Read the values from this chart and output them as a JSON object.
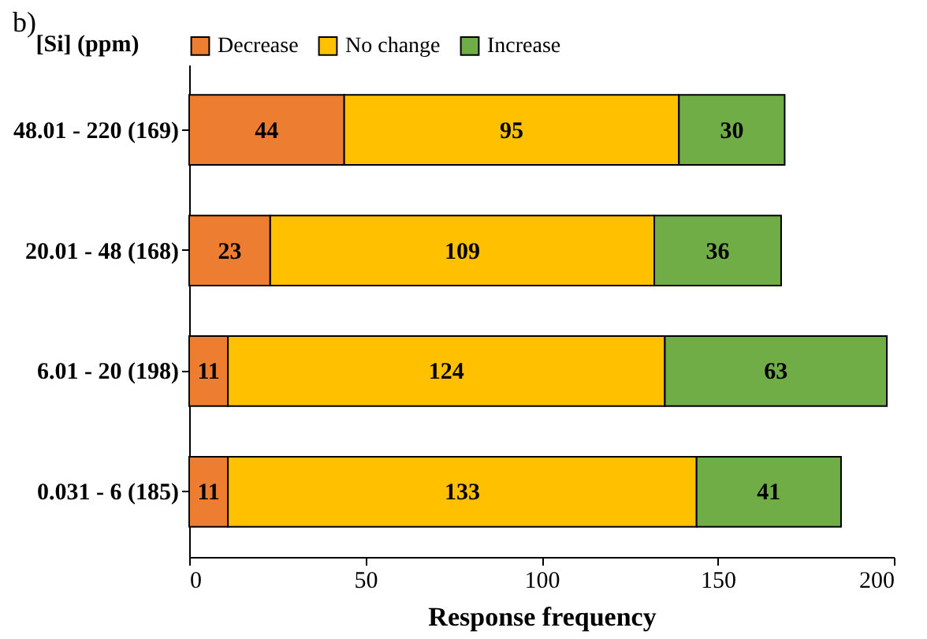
{
  "chart_data": {
    "type": "bar",
    "title": "b)",
    "orientation": "horizontal",
    "stacked": true,
    "categories": [
      "48.01 - 220 (169)",
      "20.01 - 48 (168)",
      "6.01 - 20 (198)",
      "0.031 - 6 (185)"
    ],
    "series": [
      {
        "name": "Decrease",
        "color": "#ed7d31",
        "values": [
          44,
          23,
          11,
          11
        ]
      },
      {
        "name": "No change",
        "color": "#ffc000",
        "values": [
          95,
          109,
          124,
          133
        ]
      },
      {
        "name": "Increase",
        "color": "#70ad47",
        "values": [
          30,
          36,
          63,
          41
        ]
      }
    ],
    "xlabel": "Response frequency",
    "ylabel": "[Si] (ppm)",
    "xlim": [
      0,
      200
    ],
    "xticks": [
      0,
      50,
      100,
      150,
      200
    ],
    "data_labels": true,
    "legend": "top"
  }
}
